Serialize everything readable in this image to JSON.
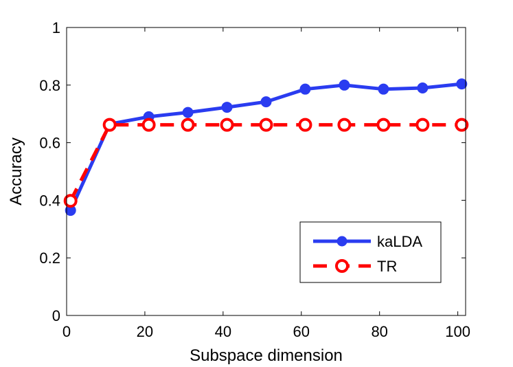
{
  "chart_data": {
    "type": "line",
    "title": "",
    "xlabel": "Subspace dimension",
    "ylabel": "Accuracy",
    "xlim": [
      0,
      102
    ],
    "ylim": [
      0,
      1
    ],
    "xticks": [
      0,
      20,
      40,
      60,
      80,
      100
    ],
    "yticks": [
      0,
      0.2,
      0.4,
      0.6,
      0.8,
      1
    ],
    "xtick_labels": [
      "0",
      "20",
      "40",
      "60",
      "80",
      "100"
    ],
    "ytick_labels": [
      "0",
      "0.2",
      "0.4",
      "0.6",
      "0.8",
      "1"
    ],
    "grid": false,
    "legend_position": "bottom-right",
    "x": [
      1,
      11,
      21,
      31,
      41,
      51,
      61,
      71,
      81,
      91,
      101
    ],
    "series": [
      {
        "name": "kaLDA",
        "color": "#2a3cf0",
        "line_style": "solid",
        "marker": "filled-circle",
        "values": [
          0.365,
          0.665,
          0.69,
          0.705,
          0.723,
          0.742,
          0.786,
          0.8,
          0.786,
          0.79,
          0.804
        ]
      },
      {
        "name": "TR",
        "color": "#ff0000",
        "line_style": "dashed",
        "marker": "open-circle",
        "values": [
          0.398,
          0.662,
          0.662,
          0.662,
          0.662,
          0.662,
          0.662,
          0.662,
          0.662,
          0.662,
          0.662
        ]
      }
    ]
  }
}
